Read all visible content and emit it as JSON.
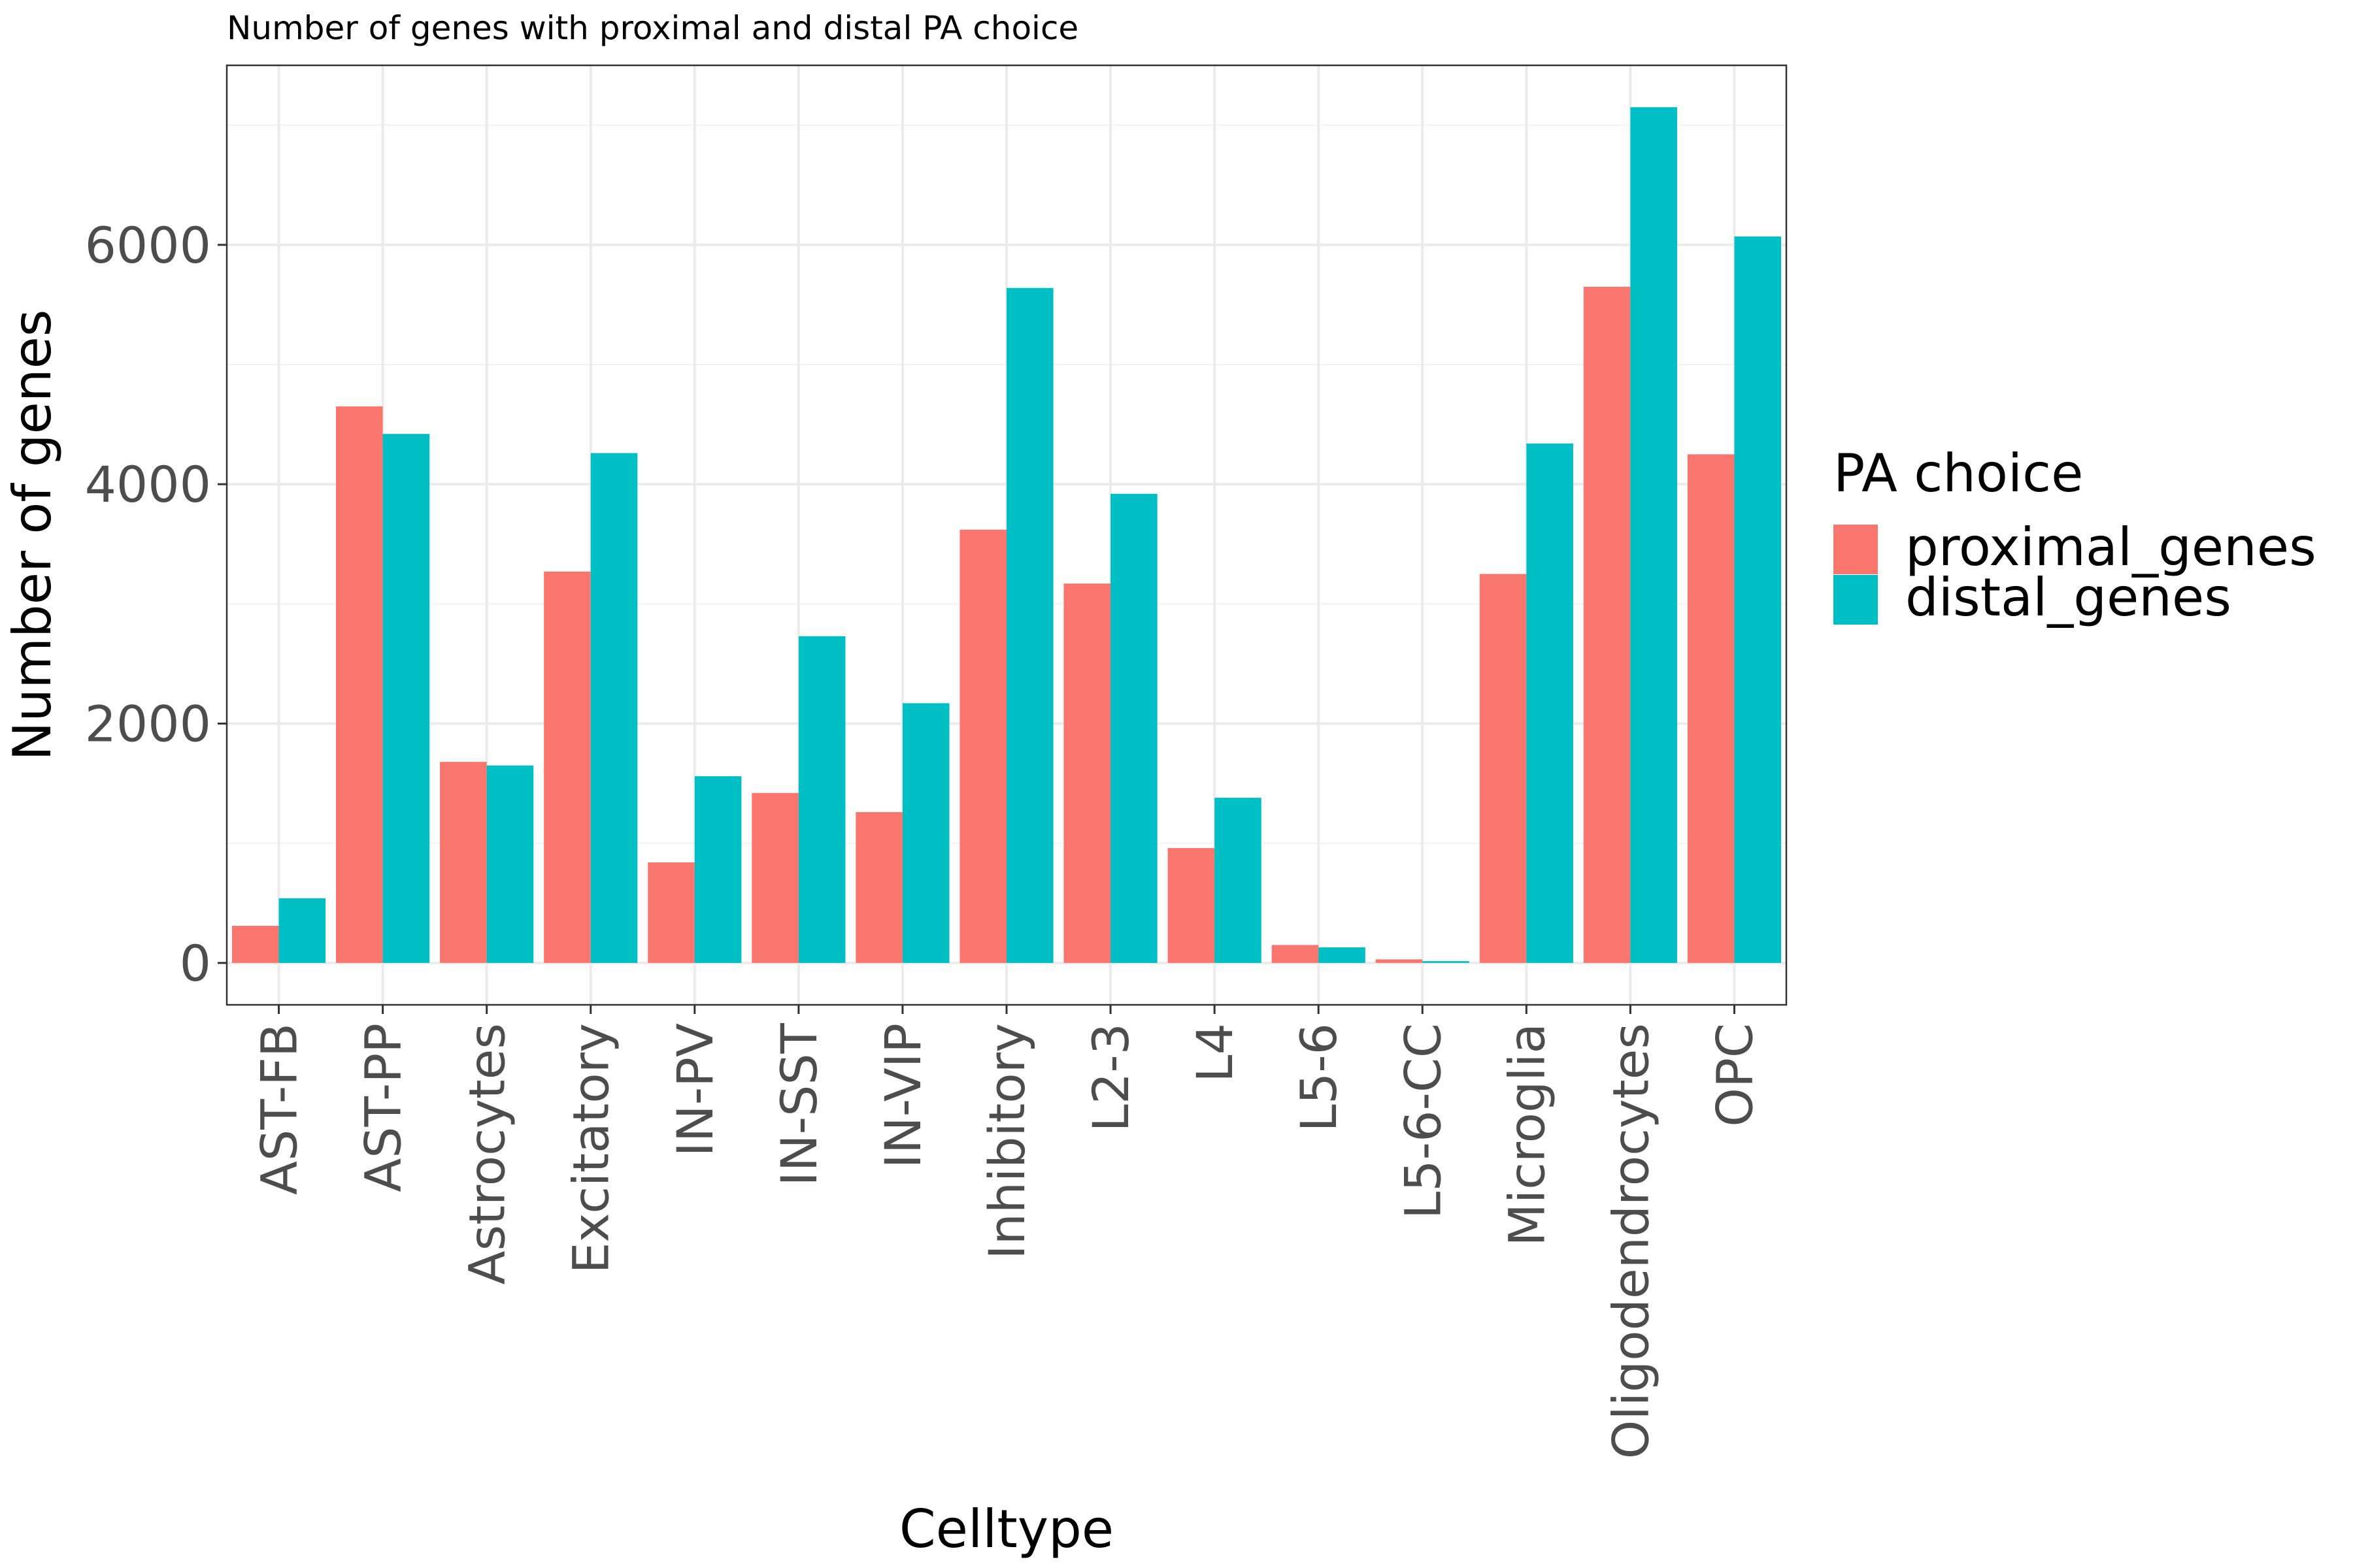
{
  "chart_data": {
    "type": "bar",
    "title": "Number of genes with proximal and distal PA choice",
    "xlabel": "Celltype",
    "ylabel": "Number of genes",
    "legend_title": "PA choice",
    "legend_position": "right",
    "grid": true,
    "ylim": [
      -350,
      7500
    ],
    "yticks": [
      0,
      2000,
      4000,
      6000
    ],
    "categories": [
      "AST-FB",
      "AST-PP",
      "Astrocytes",
      "Excitatory",
      "IN-PV",
      "IN-SST",
      "IN-VIP",
      "Inhibitory",
      "L2-3",
      "L4",
      "L5-6",
      "L5-6-CC",
      "Microglia",
      "Oligodendrocytes",
      "OPC"
    ],
    "series": [
      {
        "name": "proximal_genes",
        "color": "#F8766D",
        "values": [
          310,
          4650,
          1680,
          3270,
          840,
          1420,
          1260,
          3620,
          3170,
          960,
          150,
          30,
          3250,
          5650,
          4250
        ]
      },
      {
        "name": "distal_genes",
        "color": "#00BFC4",
        "values": [
          540,
          4420,
          1650,
          4260,
          1560,
          2730,
          2170,
          5640,
          3920,
          1380,
          130,
          15,
          4340,
          7150,
          6070
        ]
      }
    ]
  }
}
